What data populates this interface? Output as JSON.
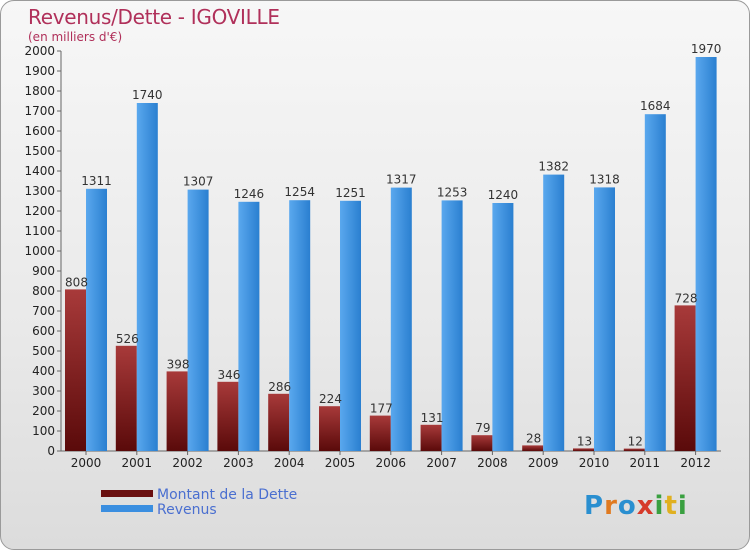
{
  "chart_data": {
    "type": "bar",
    "title": "Revenus/Dette - IGOVILLE",
    "subtitle": "(en milliers d'€)",
    "categories": [
      "2000",
      "2001",
      "2002",
      "2003",
      "2004",
      "2005",
      "2006",
      "2007",
      "2008",
      "2009",
      "2010",
      "2011",
      "2012"
    ],
    "series": [
      {
        "name": "Montant de la Dette",
        "values": [
          808,
          526,
          398,
          346,
          286,
          224,
          177,
          131,
          79,
          28,
          13,
          12,
          728
        ],
        "color": "#8b1c1c"
      },
      {
        "name": "Revenus",
        "values": [
          1311,
          1740,
          1307,
          1246,
          1254,
          1251,
          1317,
          1253,
          1240,
          1382,
          1318,
          1684,
          1970
        ],
        "color": "#3a8ee0"
      }
    ],
    "ylim": [
      0,
      2000
    ],
    "yticks": [
      0,
      100,
      200,
      300,
      400,
      500,
      600,
      700,
      800,
      900,
      1000,
      1100,
      1200,
      1300,
      1400,
      1500,
      1600,
      1700,
      1800,
      1900,
      2000
    ],
    "grid": false,
    "legend_position": "bottom-left"
  },
  "legend": {
    "debt_label": "Montant de la Dette",
    "revenue_label": "Revenus"
  },
  "logo": {
    "letters": [
      "P",
      "r",
      "o",
      "x",
      "i",
      "t",
      "i"
    ],
    "colors": [
      "#2a8fd0",
      "#e07a20",
      "#2a8fd0",
      "#d63a2a",
      "#3aa040",
      "#e0b020",
      "#3aa040"
    ]
  }
}
